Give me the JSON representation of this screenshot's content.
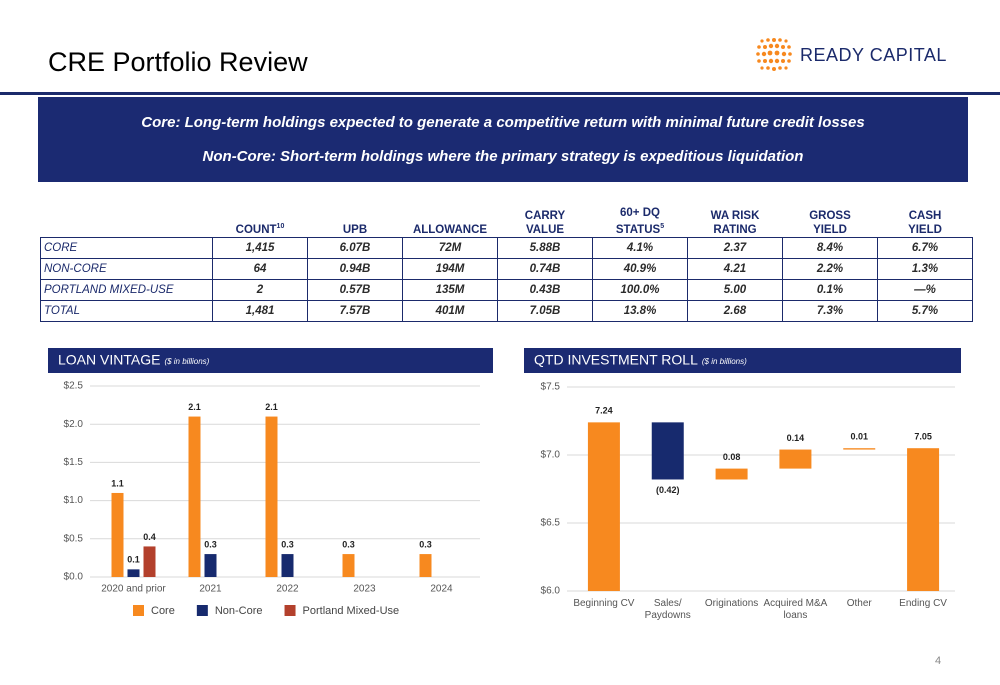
{
  "header": {
    "title": "CRE Portfolio Review",
    "logo": "READY CAPITAL"
  },
  "banner": {
    "lines": [
      "Core: Long-term holdings expected to generate a competitive return with minimal future credit losses",
      "Non-Core: Short-term holdings where the primary strategy is expeditious liquidation"
    ]
  },
  "table": {
    "columns": [
      {
        "lines": [
          "COUNT"
        ],
        "sup": "10"
      },
      {
        "lines": [
          "UPB"
        ]
      },
      {
        "lines": [
          "ALLOWANCE"
        ]
      },
      {
        "lines": [
          "CARRY",
          "VALUE"
        ]
      },
      {
        "lines": [
          "60+ DQ",
          "STATUS"
        ],
        "sup": "5"
      },
      {
        "lines": [
          "WA RISK",
          "RATING"
        ]
      },
      {
        "lines": [
          "GROSS",
          "YIELD"
        ]
      },
      {
        "lines": [
          "CASH",
          "YIELD"
        ]
      }
    ],
    "rows": [
      [
        "CORE",
        "1,415",
        "6.07B",
        "72M",
        "5.88B",
        "4.1%",
        "2.37",
        "8.4%",
        "6.7%"
      ],
      [
        "NON-CORE",
        "64",
        "0.94B",
        "194M",
        "0.74B",
        "40.9%",
        "4.21",
        "2.2%",
        "1.3%"
      ],
      [
        "PORTLAND MIXED-USE",
        "2",
        "0.57B",
        "135M",
        "0.43B",
        "100.0%",
        "5.00",
        "0.1%",
        "—%"
      ],
      [
        "TOTAL",
        "1,481",
        "7.57B",
        "401M",
        "7.05B",
        "13.8%",
        "2.68",
        "7.3%",
        "5.7%"
      ]
    ]
  },
  "chart_data": [
    {
      "type": "bar",
      "title": "LOAN VINTAGE",
      "subtitle": "($ in billions)",
      "categories": [
        "2020 and prior",
        "2021",
        "2022",
        "2023",
        "2024"
      ],
      "series": [
        {
          "name": "Core",
          "color": "#f7891f",
          "values": [
            1.1,
            2.1,
            2.1,
            0.3,
            0.3
          ]
        },
        {
          "name": "Non-Core",
          "color": "#172a6e",
          "values": [
            0.1,
            0.3,
            0.3,
            null,
            null
          ]
        },
        {
          "name": "Portland Mixed-Use",
          "color": "#b3402c",
          "values": [
            0.4,
            null,
            null,
            null,
            null
          ]
        }
      ],
      "ylim": [
        0,
        2.5
      ],
      "yticks": [
        {
          "value": 0,
          "label": "$0.0"
        },
        {
          "value": 0.5,
          "label": "$0.5"
        },
        {
          "value": 1,
          "label": "$1.0"
        },
        {
          "value": 1.5,
          "label": "$1.5"
        },
        {
          "value": 2,
          "label": "$2.0"
        },
        {
          "value": 2.5,
          "label": "$2.5"
        }
      ],
      "grid": true,
      "legend": "bottom"
    },
    {
      "type": "waterfall",
      "title": "QTD INVESTMENT ROLL",
      "subtitle": "($ in billions)",
      "categories": [
        "Beginning CV",
        "Sales/ Paydowns",
        "Originations",
        "Acquired M&A loans",
        "Other",
        "Ending CV"
      ],
      "values": [
        7.24,
        -0.42,
        0.08,
        0.14,
        0.01,
        7.05
      ],
      "value_labels": [
        "7.24",
        "(0.42)",
        "0.08",
        "0.14",
        "0.01",
        "7.05"
      ],
      "colors": [
        "#f7891f",
        "#172a6e",
        "#f7891f",
        "#f7891f",
        "#f7891f",
        "#f7891f"
      ],
      "ylim": [
        6,
        7.5
      ],
      "yticks": [
        {
          "value": 6,
          "label": "$6.0"
        },
        {
          "value": 6.5,
          "label": "$6.5"
        },
        {
          "value": 7,
          "label": "$7.0"
        },
        {
          "value": 7.5,
          "label": "$7.5"
        }
      ],
      "grid": true
    }
  ],
  "footer": {
    "page_number": "4"
  }
}
